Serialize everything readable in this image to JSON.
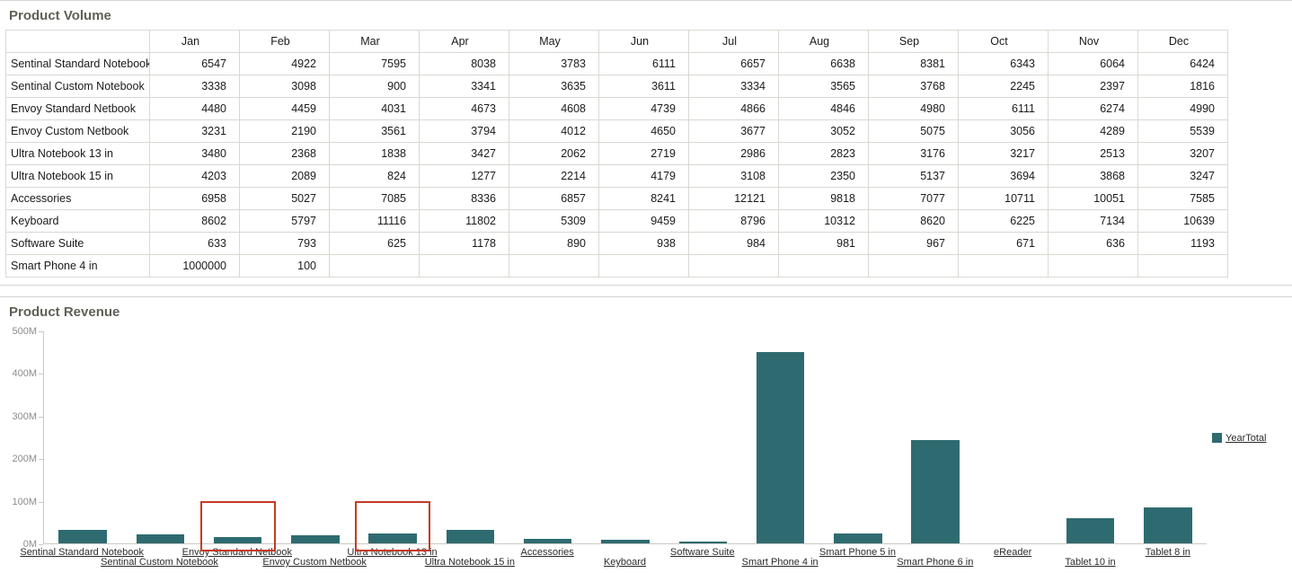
{
  "product_volume": {
    "title": "Product Volume",
    "columns": [
      "Jan",
      "Feb",
      "Mar",
      "Apr",
      "May",
      "Jun",
      "Jul",
      "Aug",
      "Sep",
      "Oct",
      "Nov",
      "Dec"
    ],
    "rows": [
      {
        "label": "Sentinal Standard Notebook",
        "values": [
          "6547",
          "4922",
          "7595",
          "8038",
          "3783",
          "6111",
          "6657",
          "6638",
          "8381",
          "6343",
          "6064",
          "6424"
        ]
      },
      {
        "label": "Sentinal Custom Notebook",
        "values": [
          "3338",
          "3098",
          "900",
          "3341",
          "3635",
          "3611",
          "3334",
          "3565",
          "3768",
          "2245",
          "2397",
          "1816"
        ]
      },
      {
        "label": "Envoy Standard Netbook",
        "values": [
          "4480",
          "4459",
          "4031",
          "4673",
          "4608",
          "4739",
          "4866",
          "4846",
          "4980",
          "6111",
          "6274",
          "4990"
        ]
      },
      {
        "label": "Envoy Custom Netbook",
        "values": [
          "3231",
          "2190",
          "3561",
          "3794",
          "4012",
          "4650",
          "3677",
          "3052",
          "5075",
          "3056",
          "4289",
          "5539"
        ]
      },
      {
        "label": "Ultra Notebook 13 in",
        "values": [
          "3480",
          "2368",
          "1838",
          "3427",
          "2062",
          "2719",
          "2986",
          "2823",
          "3176",
          "3217",
          "2513",
          "3207"
        ]
      },
      {
        "label": "Ultra Notebook 15 in",
        "values": [
          "4203",
          "2089",
          "824",
          "1277",
          "2214",
          "4179",
          "3108",
          "2350",
          "5137",
          "3694",
          "3868",
          "3247"
        ]
      },
      {
        "label": "Accessories",
        "values": [
          "6958",
          "5027",
          "7085",
          "8336",
          "6857",
          "8241",
          "12121",
          "9818",
          "7077",
          "10711",
          "10051",
          "7585"
        ]
      },
      {
        "label": "Keyboard",
        "values": [
          "8602",
          "5797",
          "11116",
          "11802",
          "5309",
          "9459",
          "8796",
          "10312",
          "8620",
          "6225",
          "7134",
          "10639"
        ]
      },
      {
        "label": "Software Suite",
        "values": [
          "633",
          "793",
          "625",
          "1178",
          "890",
          "938",
          "984",
          "981",
          "967",
          "671",
          "636",
          "1193"
        ]
      },
      {
        "label": "Smart Phone 4 in",
        "values": [
          "1000000",
          "100",
          "",
          "",
          "",
          "",
          "",
          "",
          "",
          "",
          "",
          ""
        ]
      }
    ]
  },
  "product_revenue": {
    "title": "Product Revenue",
    "legend": "YearTotal",
    "bar_color": "#2e6b70",
    "highlight_color": "#c63b24"
  },
  "chart_data": {
    "type": "bar",
    "title": "Product Revenue",
    "categories": [
      "Sentinal Standard Notebook",
      "Sentinal Custom Notebook",
      "Envoy Standard Netbook",
      "Envoy Custom Netbook",
      "Ultra Notebook 13 in",
      "Ultra Notebook 15 in",
      "Accessories",
      "Keyboard",
      "Software Suite",
      "Smart Phone 4 in",
      "Smart Phone 5 in",
      "Smart Phone 6 in",
      "eReader",
      "Tablet 10 in",
      "Tablet 8 in"
    ],
    "series": [
      {
        "name": "YearTotal",
        "values_millions": [
          32,
          21,
          15,
          19,
          23,
          32,
          11,
          9,
          4,
          449,
          23,
          243,
          0,
          60,
          85
        ]
      }
    ],
    "y_tick_labels": [
      "0M",
      "100M",
      "200M",
      "300M",
      "400M",
      "500M"
    ],
    "ylim_millions": [
      0,
      500
    ],
    "legend_position": "right",
    "grid": false,
    "highlighted_categories": [
      "Envoy Standard Netbook",
      "Ultra Notebook 13 in"
    ]
  }
}
